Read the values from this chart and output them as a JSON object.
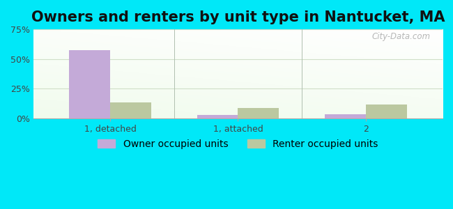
{
  "title": "Owners and renters by unit type in Nantucket, MA",
  "categories": [
    "1, detached",
    "1, attached",
    "2"
  ],
  "owner_values": [
    57.5,
    2.5,
    3.5
  ],
  "renter_values": [
    13.0,
    8.5,
    11.5
  ],
  "owner_color": "#c4aad8",
  "renter_color": "#bbc8a0",
  "ylim": [
    0,
    75
  ],
  "yticks": [
    0,
    25,
    50,
    75
  ],
  "ytick_labels": [
    "0%",
    "25%",
    "50%",
    "75%"
  ],
  "bar_width": 0.32,
  "outer_bg": "#00e8f8",
  "legend_owner": "Owner occupied units",
  "legend_renter": "Renter occupied units",
  "watermark": "City-Data.com",
  "title_fontsize": 15,
  "label_fontsize": 10,
  "tick_fontsize": 9,
  "grid_color": "#d0dfc8",
  "separator_color": "#b0c0b0"
}
